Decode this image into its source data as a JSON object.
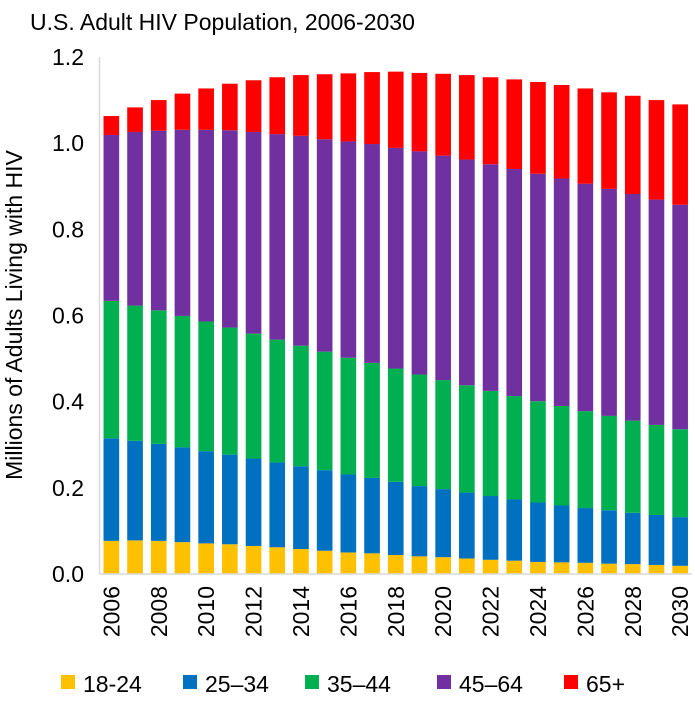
{
  "chart_data": {
    "type": "bar",
    "stacked": true,
    "title": "U.S. Adult HIV Population, 2006-2030",
    "xlabel": "",
    "ylabel": "Millions of Adults Living with HIV",
    "ylim": [
      0,
      1.2
    ],
    "yticks": [
      "0.0",
      "0.2",
      "0.4",
      "0.6",
      "0.8",
      "1.0",
      "1.2"
    ],
    "ytick_values": [
      0,
      0.2,
      0.4,
      0.6,
      0.8,
      1.0,
      1.2
    ],
    "grid": false,
    "legend_position": "bottom",
    "categories": [
      "2006",
      "2007",
      "2008",
      "2009",
      "2010",
      "2011",
      "2012",
      "2013",
      "2014",
      "2015",
      "2016",
      "2017",
      "2018",
      "2019",
      "2020",
      "2021",
      "2022",
      "2023",
      "2024",
      "2025",
      "2026",
      "2027",
      "2028",
      "2029",
      "2030"
    ],
    "xtick_labels": [
      "2006",
      "",
      "2008",
      "",
      "2010",
      "",
      "2012",
      "",
      "2014",
      "",
      "2016",
      "",
      "2018",
      "",
      "2020",
      "",
      "2022",
      "",
      "2024",
      "",
      "2026",
      "",
      "2028",
      "",
      "2030"
    ],
    "series": [
      {
        "name": "18-24",
        "color": "#FFC000",
        "values": [
          0.077,
          0.078,
          0.077,
          0.074,
          0.071,
          0.069,
          0.065,
          0.062,
          0.058,
          0.054,
          0.05,
          0.048,
          0.044,
          0.041,
          0.039,
          0.036,
          0.033,
          0.031,
          0.028,
          0.027,
          0.026,
          0.024,
          0.023,
          0.021,
          0.019
        ]
      },
      {
        "name": "25–34",
        "color": "#0070C0",
        "values": [
          0.238,
          0.231,
          0.225,
          0.22,
          0.214,
          0.208,
          0.203,
          0.197,
          0.192,
          0.187,
          0.181,
          0.175,
          0.17,
          0.163,
          0.158,
          0.153,
          0.148,
          0.142,
          0.138,
          0.132,
          0.127,
          0.124,
          0.119,
          0.116,
          0.113
        ]
      },
      {
        "name": "35–44",
        "color": "#00B050",
        "values": [
          0.319,
          0.314,
          0.31,
          0.305,
          0.301,
          0.295,
          0.29,
          0.285,
          0.28,
          0.275,
          0.271,
          0.267,
          0.263,
          0.259,
          0.253,
          0.249,
          0.244,
          0.24,
          0.235,
          0.231,
          0.225,
          0.219,
          0.214,
          0.209,
          0.204
        ]
      },
      {
        "name": "45–64",
        "color": "#7030A0",
        "values": [
          0.385,
          0.403,
          0.417,
          0.432,
          0.445,
          0.458,
          0.468,
          0.477,
          0.487,
          0.493,
          0.502,
          0.508,
          0.512,
          0.518,
          0.521,
          0.524,
          0.526,
          0.527,
          0.528,
          0.528,
          0.528,
          0.527,
          0.526,
          0.523,
          0.521
        ]
      },
      {
        "name": "65+",
        "color": "#FF0000",
        "values": [
          0.044,
          0.057,
          0.071,
          0.084,
          0.096,
          0.108,
          0.12,
          0.132,
          0.141,
          0.151,
          0.158,
          0.167,
          0.177,
          0.182,
          0.19,
          0.196,
          0.202,
          0.208,
          0.213,
          0.217,
          0.221,
          0.224,
          0.228,
          0.231,
          0.233
        ]
      }
    ]
  }
}
